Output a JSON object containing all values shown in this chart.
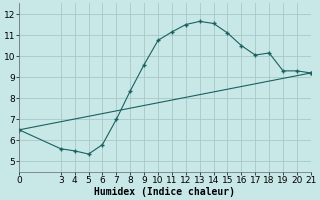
{
  "xlabel": "Humidex (Indice chaleur)",
  "background_color": "#c8e8e8",
  "grid_color": "#a8c8c8",
  "line_color": "#1a6060",
  "marker_color": "#1a6060",
  "xlim": [
    0,
    21
  ],
  "ylim": [
    4.5,
    12.5
  ],
  "xticks": [
    0,
    3,
    4,
    5,
    6,
    7,
    8,
    9,
    10,
    11,
    12,
    13,
    14,
    15,
    16,
    17,
    18,
    19,
    20,
    21
  ],
  "yticks": [
    5,
    6,
    7,
    8,
    9,
    10,
    11,
    12
  ],
  "curve1_x": [
    0,
    3,
    4,
    5,
    6,
    7,
    8,
    9,
    10,
    11,
    12,
    13,
    14,
    15,
    16,
    17,
    18,
    19,
    20,
    21
  ],
  "curve1_y": [
    6.5,
    5.6,
    5.5,
    5.35,
    5.8,
    7.0,
    8.35,
    9.6,
    10.75,
    11.15,
    11.5,
    11.65,
    11.55,
    11.1,
    10.5,
    10.05,
    10.15,
    9.3,
    9.3,
    9.2
  ],
  "curve2_x": [
    0,
    21
  ],
  "curve2_y": [
    6.5,
    9.2
  ],
  "font_size_label": 7,
  "font_size_tick": 6.5
}
